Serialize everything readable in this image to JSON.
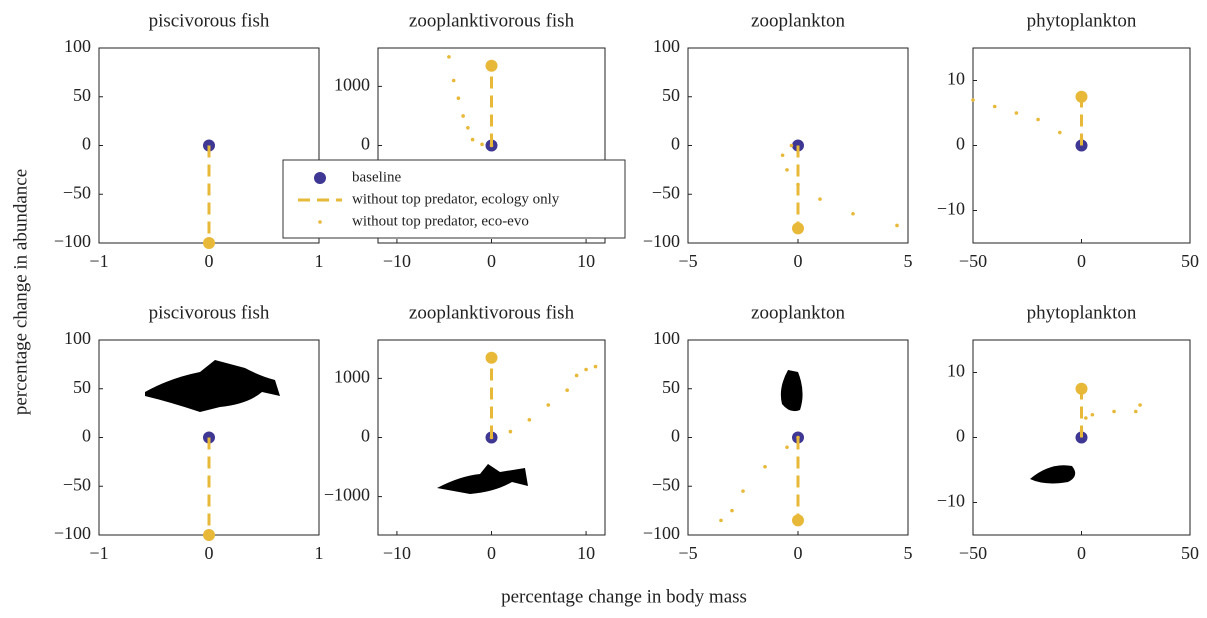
{
  "xlabel": "percentage change in body mass",
  "ylabel": "percentage change in abundance",
  "legend": [
    {
      "name": "baseline",
      "color": "#3f3794",
      "style": "marker"
    },
    {
      "name": "without top predator, ecology only",
      "color": "#e8b838",
      "style": "dashed"
    },
    {
      "name": "without top predator, eco-evo",
      "color": "#e8b838",
      "style": "dotted"
    }
  ],
  "chart_data": [
    {
      "type": "scatter",
      "title": "piscivorous fish",
      "xlim": [
        -1,
        1
      ],
      "xticks": [
        {
          "value": -1,
          "label": "−1"
        },
        0,
        1
      ],
      "ylim": [
        -100,
        100
      ],
      "yticks": [
        {
          "value": -100,
          "label": "−100"
        },
        {
          "value": -50,
          "label": "−50"
        },
        0,
        50,
        100
      ],
      "series": [
        {
          "color": "#3f3794",
          "style": "marker",
          "x": [
            0
          ],
          "values": [
            0
          ]
        },
        {
          "color": "#e8b838",
          "style": "dashed",
          "x": [
            0,
            0
          ],
          "values": [
            0,
            -100
          ]
        }
      ]
    },
    {
      "type": "scatter",
      "title": "zooplanktivorous fish",
      "xlim": [
        -12,
        12
      ],
      "xticks": [
        {
          "value": -10,
          "label": "−10"
        },
        0,
        10
      ],
      "ylim": [
        -1650,
        1650
      ],
      "yticks": [
        0,
        1000
      ],
      "series": [
        {
          "color": "#3f3794",
          "style": "marker",
          "x": [
            0
          ],
          "values": [
            0
          ]
        },
        {
          "color": "#e8b838",
          "style": "dashed",
          "x": [
            0,
            0
          ],
          "values": [
            0,
            1350
          ]
        },
        {
          "color": "#e8b838",
          "style": "dotted",
          "x": [
            0,
            -1,
            -2,
            -2.5,
            -3,
            -3.5,
            -4,
            -4.5
          ],
          "values": [
            0,
            20,
            100,
            300,
            500,
            800,
            1100,
            1500
          ]
        }
      ]
    },
    {
      "type": "scatter",
      "title": "zooplankton",
      "xlim": [
        -5,
        5
      ],
      "xticks": [
        {
          "value": -5,
          "label": "−5"
        },
        0,
        5
      ],
      "ylim": [
        -100,
        100
      ],
      "yticks": [
        {
          "value": -100,
          "label": "−100"
        },
        {
          "value": -50,
          "label": "−50"
        },
        0,
        50,
        100
      ],
      "series": [
        {
          "color": "#3f3794",
          "style": "marker",
          "x": [
            0
          ],
          "values": [
            0
          ]
        },
        {
          "color": "#e8b838",
          "style": "dashed",
          "x": [
            0,
            0
          ],
          "values": [
            0,
            -85
          ]
        },
        {
          "color": "#e8b838",
          "style": "dotted",
          "x": [
            -0.3,
            -0.7,
            -0.5,
            0,
            1,
            2.5,
            4.5
          ],
          "values": [
            0,
            -10,
            -25,
            -40,
            -55,
            -70,
            -82
          ]
        }
      ]
    },
    {
      "type": "scatter",
      "title": "phytoplankton",
      "xlim": [
        -50,
        50
      ],
      "xticks": [
        {
          "value": -50,
          "label": "−50"
        },
        0,
        50
      ],
      "ylim": [
        -15,
        15
      ],
      "yticks": [
        {
          "value": -10,
          "label": "−10"
        },
        0,
        10
      ],
      "series": [
        {
          "color": "#3f3794",
          "style": "marker",
          "x": [
            0
          ],
          "values": [
            0
          ]
        },
        {
          "color": "#e8b838",
          "style": "dashed",
          "x": [
            0,
            0
          ],
          "values": [
            0,
            7.5
          ]
        },
        {
          "color": "#e8b838",
          "style": "dotted",
          "x": [
            0,
            -10,
            -20,
            -30,
            -40,
            -50
          ],
          "values": [
            1,
            2,
            4,
            5,
            6,
            7
          ]
        }
      ]
    },
    {
      "type": "scatter",
      "title": "piscivorous fish",
      "xlim": [
        -1,
        1
      ],
      "xticks": [
        {
          "value": -1,
          "label": "−1"
        },
        0,
        1
      ],
      "ylim": [
        -100,
        100
      ],
      "yticks": [
        {
          "value": -100,
          "label": "−100"
        },
        {
          "value": -50,
          "label": "−50"
        },
        0,
        50,
        100
      ],
      "series": [
        {
          "color": "#3f3794",
          "style": "marker",
          "x": [
            0
          ],
          "values": [
            0
          ]
        },
        {
          "color": "#e8b838",
          "style": "dashed",
          "x": [
            0,
            0
          ],
          "values": [
            0,
            -100
          ]
        }
      ]
    },
    {
      "type": "scatter",
      "title": "zooplanktivorous fish",
      "xlim": [
        -12,
        12
      ],
      "xticks": [
        {
          "value": -10,
          "label": "−10"
        },
        0,
        10
      ],
      "ylim": [
        -1650,
        1650
      ],
      "yticks": [
        {
          "value": -1000,
          "label": "−1000"
        },
        0,
        1000
      ],
      "series": [
        {
          "color": "#3f3794",
          "style": "marker",
          "x": [
            0
          ],
          "values": [
            0
          ]
        },
        {
          "color": "#e8b838",
          "style": "dashed",
          "x": [
            0,
            0
          ],
          "values": [
            0,
            1350
          ]
        },
        {
          "color": "#e8b838",
          "style": "dotted",
          "x": [
            0,
            2,
            4,
            6,
            8,
            9,
            10,
            11
          ],
          "values": [
            0,
            100,
            300,
            550,
            800,
            1050,
            1150,
            1200
          ]
        }
      ]
    },
    {
      "type": "scatter",
      "title": "zooplankton",
      "xlim": [
        -5,
        5
      ],
      "xticks": [
        {
          "value": -5,
          "label": "−5"
        },
        0,
        5
      ],
      "ylim": [
        -100,
        100
      ],
      "yticks": [
        {
          "value": -100,
          "label": "−100"
        },
        {
          "value": -50,
          "label": "−50"
        },
        0,
        50,
        100
      ],
      "series": [
        {
          "color": "#3f3794",
          "style": "marker",
          "x": [
            0
          ],
          "values": [
            0
          ]
        },
        {
          "color": "#e8b838",
          "style": "dashed",
          "x": [
            0,
            0
          ],
          "values": [
            0,
            -85
          ]
        },
        {
          "color": "#e8b838",
          "style": "dotted",
          "x": [
            0,
            -0.5,
            -1.5,
            -2.5,
            -3,
            -3.5
          ],
          "values": [
            0,
            -10,
            -30,
            -55,
            -75,
            -85
          ]
        }
      ]
    },
    {
      "type": "scatter",
      "title": "phytoplankton",
      "xlim": [
        -50,
        50
      ],
      "xticks": [
        {
          "value": -50,
          "label": "−50"
        },
        0,
        50
      ],
      "ylim": [
        -15,
        15
      ],
      "yticks": [
        {
          "value": -10,
          "label": "−10"
        },
        0,
        10
      ],
      "series": [
        {
          "color": "#3f3794",
          "style": "marker",
          "x": [
            0
          ],
          "values": [
            0
          ]
        },
        {
          "color": "#e8b838",
          "style": "dashed",
          "x": [
            0,
            0
          ],
          "values": [
            0,
            7.5
          ]
        },
        {
          "color": "#e8b838",
          "style": "dotted",
          "x": [
            0,
            2,
            5,
            15,
            25,
            27
          ],
          "values": [
            1,
            3,
            3.5,
            4,
            4,
            5
          ]
        }
      ]
    }
  ]
}
